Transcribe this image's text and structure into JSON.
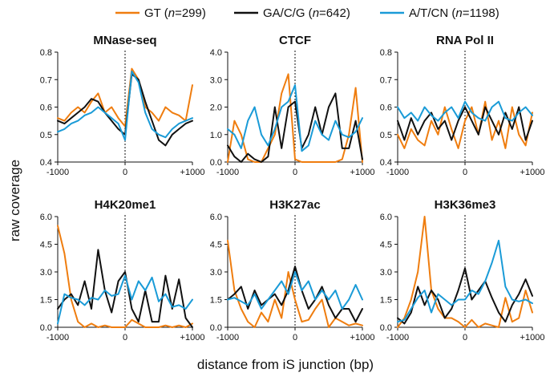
{
  "legend": {
    "entries": [
      {
        "label": "GT",
        "n_label": "n",
        "n_value": "=299)",
        "color": "#ef7d0f"
      },
      {
        "label": "GA/C/G",
        "n_label": "n",
        "n_value": "=642)",
        "color": "#111111"
      },
      {
        "label": "A/T/CN",
        "n_label": "n",
        "n_value": "=1198)",
        "color": "#1a9bd7"
      }
    ]
  },
  "ylabel": "raw coverage",
  "xlabel": "distance from iS junction (bp)",
  "chart_data": [
    {
      "type": "line",
      "title": "MNase-seq",
      "ylim": [
        0.4,
        0.8
      ],
      "yticks": [
        "0.4",
        "0.5",
        "0.6",
        "0.7",
        "0.8"
      ],
      "ytick_values": [
        0.4,
        0.5,
        0.6,
        0.7,
        0.8
      ],
      "xlim": [
        -1000,
        1000
      ],
      "xticks": [
        "-1000",
        "0",
        "+1000"
      ],
      "xtick_values": [
        -1000,
        0,
        1000
      ],
      "x": [
        -1000,
        -900,
        -800,
        -700,
        -600,
        -500,
        -400,
        -300,
        -200,
        -100,
        0,
        100,
        200,
        300,
        400,
        500,
        600,
        700,
        800,
        900,
        1000
      ],
      "series": [
        {
          "name": "GT",
          "color": "#ef7d0f",
          "values": [
            0.56,
            0.55,
            0.58,
            0.6,
            0.58,
            0.62,
            0.65,
            0.58,
            0.6,
            0.56,
            0.53,
            0.74,
            0.7,
            0.6,
            0.58,
            0.55,
            0.6,
            0.58,
            0.57,
            0.55,
            0.68
          ]
        },
        {
          "name": "GA/C/G",
          "color": "#111111",
          "values": [
            0.55,
            0.54,
            0.56,
            0.58,
            0.6,
            0.63,
            0.62,
            0.58,
            0.55,
            0.52,
            0.5,
            0.72,
            0.7,
            0.62,
            0.55,
            0.48,
            0.46,
            0.5,
            0.52,
            0.54,
            0.55
          ]
        },
        {
          "name": "A/T/CN",
          "color": "#1a9bd7",
          "values": [
            0.51,
            0.52,
            0.54,
            0.55,
            0.57,
            0.58,
            0.6,
            0.58,
            0.56,
            0.54,
            0.48,
            0.73,
            0.69,
            0.58,
            0.52,
            0.5,
            0.49,
            0.52,
            0.54,
            0.55,
            0.56
          ]
        }
      ]
    },
    {
      "type": "line",
      "title": "CTCF",
      "ylim": [
        0.0,
        4.0
      ],
      "yticks": [
        "0.0",
        "1.0",
        "2.0",
        "3.0",
        "4.0"
      ],
      "ytick_values": [
        0.0,
        1.0,
        2.0,
        3.0,
        4.0
      ],
      "xlim": [
        -1000,
        1000
      ],
      "xticks": [
        "-1000",
        "0",
        "+1000"
      ],
      "xtick_values": [
        -1000,
        0,
        1000
      ],
      "x": [
        -1000,
        -900,
        -800,
        -700,
        -600,
        -500,
        -400,
        -300,
        -200,
        -100,
        0,
        100,
        200,
        300,
        400,
        500,
        600,
        700,
        800,
        900,
        1000
      ],
      "series": [
        {
          "name": "GT",
          "color": "#ef7d0f",
          "values": [
            0.0,
            1.5,
            1.0,
            0.1,
            0.0,
            0.0,
            0.5,
            1.0,
            2.5,
            3.2,
            0.1,
            0.0,
            0.0,
            0.0,
            0.0,
            0.0,
            0.0,
            0.1,
            1.0,
            2.7,
            0.0
          ]
        },
        {
          "name": "GA/C/G",
          "color": "#111111",
          "values": [
            0.6,
            0.2,
            0.0,
            0.3,
            0.1,
            0.0,
            0.2,
            2.0,
            0.5,
            2.0,
            2.2,
            0.5,
            1.0,
            2.0,
            1.0,
            2.0,
            2.5,
            0.5,
            0.5,
            1.5,
            0.1
          ]
        },
        {
          "name": "A/T/CN",
          "color": "#1a9bd7",
          "values": [
            1.2,
            1.0,
            0.5,
            1.5,
            2.0,
            1.0,
            0.6,
            1.2,
            2.0,
            2.2,
            2.8,
            0.4,
            0.6,
            1.5,
            1.0,
            0.8,
            1.5,
            1.0,
            0.9,
            1.1,
            1.6
          ]
        }
      ]
    },
    {
      "type": "line",
      "title": "RNA Pol II",
      "ylim": [
        0.4,
        0.8
      ],
      "yticks": [
        "0.4",
        "0.5",
        "0.6",
        "0.7",
        "0.8"
      ],
      "ytick_values": [
        0.4,
        0.5,
        0.6,
        0.7,
        0.8
      ],
      "xlim": [
        -1000,
        1000
      ],
      "xticks": [
        "-1000",
        "0",
        "+1000"
      ],
      "xtick_values": [
        -1000,
        0,
        1000
      ],
      "x": [
        -1000,
        -900,
        -800,
        -700,
        -600,
        -500,
        -400,
        -300,
        -200,
        -100,
        0,
        100,
        200,
        300,
        400,
        500,
        600,
        700,
        800,
        900,
        1000
      ],
      "series": [
        {
          "name": "GT",
          "color": "#ef7d0f",
          "values": [
            0.5,
            0.45,
            0.52,
            0.48,
            0.46,
            0.55,
            0.5,
            0.6,
            0.52,
            0.45,
            0.55,
            0.6,
            0.5,
            0.62,
            0.48,
            0.55,
            0.45,
            0.6,
            0.5,
            0.46,
            0.58
          ]
        },
        {
          "name": "GA/C/G",
          "color": "#111111",
          "values": [
            0.55,
            0.48,
            0.56,
            0.5,
            0.55,
            0.58,
            0.52,
            0.55,
            0.48,
            0.55,
            0.6,
            0.55,
            0.5,
            0.6,
            0.55,
            0.5,
            0.58,
            0.52,
            0.6,
            0.48,
            0.55
          ]
        },
        {
          "name": "A/T/CN",
          "color": "#1a9bd7",
          "values": [
            0.6,
            0.56,
            0.58,
            0.55,
            0.6,
            0.57,
            0.55,
            0.58,
            0.6,
            0.56,
            0.62,
            0.58,
            0.56,
            0.55,
            0.6,
            0.62,
            0.56,
            0.55,
            0.58,
            0.6,
            0.57
          ]
        }
      ]
    },
    {
      "type": "line",
      "title": "H4K20me1",
      "ylim": [
        0.0,
        6.0
      ],
      "yticks": [
        "0.0",
        "1.5",
        "3.0",
        "4.5",
        "6.0"
      ],
      "ytick_values": [
        0.0,
        1.5,
        3.0,
        4.5,
        6.0
      ],
      "xlim": [
        -1000,
        1000
      ],
      "xticks": [
        "-1000",
        "0",
        "+1000"
      ],
      "xtick_values": [
        -1000,
        0,
        1000
      ],
      "x": [
        -1000,
        -900,
        -800,
        -700,
        -600,
        -500,
        -400,
        -300,
        -200,
        -100,
        0,
        100,
        200,
        300,
        400,
        500,
        600,
        700,
        800,
        900,
        1000
      ],
      "series": [
        {
          "name": "GT",
          "color": "#ef7d0f",
          "values": [
            5.5,
            4.0,
            1.5,
            0.3,
            0.0,
            0.2,
            0.0,
            0.1,
            0.0,
            0.0,
            0.0,
            0.4,
            0.2,
            0.0,
            0.0,
            0.0,
            0.1,
            0.0,
            0.1,
            0.0,
            0.2
          ]
        },
        {
          "name": "GA/C/G",
          "color": "#111111",
          "values": [
            1.0,
            1.5,
            1.8,
            1.2,
            2.5,
            1.0,
            4.2,
            2.0,
            0.8,
            2.5,
            3.0,
            1.0,
            0.3,
            2.0,
            0.3,
            0.3,
            2.8,
            1.0,
            2.6,
            0.5,
            0.0
          ]
        },
        {
          "name": "A/T/CN",
          "color": "#1a9bd7",
          "values": [
            0.2,
            1.8,
            1.6,
            1.5,
            1.2,
            1.6,
            1.5,
            2.0,
            1.7,
            1.8,
            2.8,
            1.5,
            2.5,
            2.0,
            2.7,
            1.4,
            1.8,
            1.1,
            1.2,
            1.0,
            1.5
          ]
        }
      ]
    },
    {
      "type": "line",
      "title": "H3K27ac",
      "ylim": [
        0.0,
        6.0
      ],
      "yticks": [
        "0.0",
        "1.5",
        "3.0",
        "4.5",
        "6.0"
      ],
      "ytick_values": [
        0.0,
        1.5,
        3.0,
        4.5,
        6.0
      ],
      "xlim": [
        -1000,
        1000
      ],
      "xticks": [
        "-1000",
        "0",
        "+1000"
      ],
      "xtick_values": [
        -1000,
        0,
        1000
      ],
      "x": [
        -1000,
        -900,
        -800,
        -700,
        -600,
        -500,
        -400,
        -300,
        -200,
        -100,
        0,
        100,
        200,
        300,
        400,
        500,
        600,
        700,
        800,
        900,
        1000
      ],
      "series": [
        {
          "name": "GT",
          "color": "#ef7d0f",
          "values": [
            4.7,
            2.0,
            1.0,
            0.3,
            0.0,
            0.8,
            0.3,
            1.5,
            0.5,
            3.0,
            1.5,
            0.3,
            0.4,
            1.0,
            1.5,
            0.0,
            0.5,
            0.3,
            0.1,
            0.2,
            0.1
          ]
        },
        {
          "name": "GA/C/G",
          "color": "#111111",
          "values": [
            1.5,
            1.8,
            2.2,
            1.0,
            2.0,
            1.2,
            1.5,
            1.8,
            1.2,
            2.0,
            3.3,
            2.0,
            1.0,
            1.5,
            2.2,
            1.2,
            0.5,
            1.0,
            1.0,
            0.3,
            1.0
          ]
        },
        {
          "name": "A/T/CN",
          "color": "#1a9bd7",
          "values": [
            1.5,
            1.6,
            1.4,
            1.2,
            1.8,
            1.0,
            1.5,
            2.0,
            2.5,
            1.8,
            3.0,
            2.0,
            2.5,
            1.5,
            2.0,
            1.5,
            2.0,
            1.0,
            1.5,
            2.3,
            1.5
          ]
        }
      ]
    },
    {
      "type": "line",
      "title": "H3K36me3",
      "ylim": [
        0.0,
        6.0
      ],
      "yticks": [
        "0.0",
        "1.5",
        "3.0",
        "4.5",
        "6.0"
      ],
      "ytick_values": [
        0.0,
        1.5,
        3.0,
        4.5,
        6.0
      ],
      "xlim": [
        -1000,
        1000
      ],
      "xticks": [
        "-1000",
        "0",
        "+1000"
      ],
      "xtick_values": [
        -1000,
        0,
        1000
      ],
      "x": [
        -1000,
        -900,
        -800,
        -700,
        -600,
        -500,
        -400,
        -300,
        -200,
        -100,
        0,
        100,
        200,
        300,
        400,
        500,
        600,
        700,
        800,
        900,
        1000
      ],
      "series": [
        {
          "name": "GT",
          "color": "#ef7d0f",
          "values": [
            0.0,
            0.5,
            1.5,
            3.0,
            6.0,
            2.0,
            1.0,
            0.5,
            0.5,
            0.3,
            0.0,
            0.4,
            0.0,
            0.2,
            0.1,
            0.0,
            1.6,
            0.3,
            0.5,
            2.0,
            0.8
          ]
        },
        {
          "name": "GA/C/G",
          "color": "#111111",
          "values": [
            0.5,
            0.2,
            0.8,
            2.2,
            1.2,
            2.0,
            1.5,
            0.5,
            1.0,
            2.0,
            3.2,
            1.5,
            2.0,
            2.5,
            1.6,
            0.8,
            0.3,
            1.2,
            1.8,
            2.6,
            1.7
          ]
        },
        {
          "name": "A/T/CN",
          "color": "#1a9bd7",
          "values": [
            0.3,
            0.4,
            1.0,
            1.6,
            2.0,
            0.8,
            1.8,
            1.5,
            1.2,
            1.5,
            1.5,
            2.0,
            1.8,
            2.5,
            3.5,
            4.7,
            2.2,
            1.5,
            1.4,
            1.5,
            1.3
          ]
        }
      ]
    }
  ]
}
